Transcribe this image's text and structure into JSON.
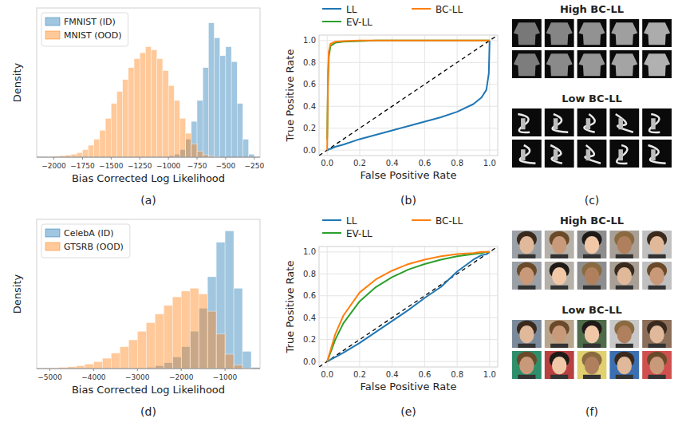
{
  "chart_data": [
    {
      "type": "histogram",
      "x_label": "Bias Corrected Log Likelihood",
      "y_label": "Density",
      "caption": "(a)",
      "bins": [
        -2100,
        -2050,
        -2000,
        -1950,
        -1900,
        -1850,
        -1800,
        -1750,
        -1700,
        -1650,
        -1600,
        -1550,
        -1500,
        -1450,
        -1400,
        -1350,
        -1300,
        -1250,
        -1200,
        -1150,
        -1100,
        -1050,
        -1000,
        -950,
        -900,
        -850,
        -800,
        -750,
        -700,
        -650,
        -600,
        -550,
        -500,
        -450,
        -400,
        -350,
        -300,
        -250
      ],
      "series": [
        {
          "name": "FMNIST (ID)",
          "color": "#1f77b4",
          "values": [
            0,
            0,
            0,
            0,
            0,
            0,
            0,
            0,
            0,
            0,
            0,
            0,
            0,
            0,
            0,
            0,
            0,
            0,
            0,
            0,
            0,
            0.02,
            0.05,
            0.1,
            0.25,
            0.6,
            1.2,
            1.9,
            3.0,
            4.5,
            4.0,
            3.4,
            3.7,
            3.2,
            1.8,
            0.6,
            0.1
          ]
        },
        {
          "name": "MNIST (OOD)",
          "color": "#ff7f0e",
          "values": [
            0,
            0.02,
            0.03,
            0.05,
            0.07,
            0.1,
            0.15,
            0.25,
            0.4,
            0.6,
            0.9,
            1.3,
            1.8,
            2.2,
            2.6,
            3.0,
            3.3,
            3.5,
            3.7,
            3.6,
            3.3,
            2.9,
            2.4,
            1.9,
            1.3,
            0.8,
            0.45,
            0.2,
            0.08,
            0.03,
            0.01,
            0,
            0,
            0,
            0,
            0,
            0
          ]
        }
      ],
      "xlim": [
        -2150,
        -200
      ],
      "ylim": [
        0,
        5
      ],
      "xticks": [
        {
          "value": -2000,
          "label": "−2000"
        },
        {
          "value": -1750,
          "label": "−1750"
        },
        {
          "value": -1500,
          "label": "−1500"
        },
        {
          "value": -1250,
          "label": "−1250"
        },
        {
          "value": -1000,
          "label": "−1000"
        },
        {
          "value": -750,
          "label": "−750"
        },
        {
          "value": -500,
          "label": "−500"
        },
        {
          "value": -250,
          "label": "−250"
        }
      ],
      "tick_labels": "x",
      "grid": false,
      "legend": "upper left"
    },
    {
      "type": "line",
      "x_label": "False Positive Rate",
      "y_label": "True Positive Rate",
      "caption": "(b)",
      "x": [
        0,
        0.005,
        0.01,
        0.02,
        0.05,
        0.1,
        0.2,
        0.3,
        0.4,
        0.5,
        0.6,
        0.7,
        0.8,
        0.9,
        0.95,
        0.98,
        0.995,
        1.0
      ],
      "series": [
        {
          "name": "LL",
          "color": "#1f77b4",
          "values": [
            0,
            0,
            0.01,
            0.01,
            0.03,
            0.05,
            0.1,
            0.14,
            0.18,
            0.22,
            0.26,
            0.3,
            0.35,
            0.42,
            0.48,
            0.55,
            0.7,
            1.0
          ]
        },
        {
          "name": "EV-LL",
          "color": "#2ca02c",
          "values": [
            0.1,
            0.6,
            0.85,
            0.95,
            0.98,
            0.99,
            0.995,
            1,
            1,
            1,
            1,
            1,
            1,
            1,
            1,
            1,
            1,
            1
          ]
        },
        {
          "name": "BC-LL",
          "color": "#ff7f0e",
          "values": [
            0,
            0.7,
            0.9,
            0.97,
            0.99,
            0.995,
            1,
            1,
            1,
            1,
            1,
            1,
            1,
            1,
            1,
            1,
            1,
            1
          ]
        }
      ],
      "xlim": [
        -0.05,
        1.05
      ],
      "ylim": [
        -0.05,
        1.05
      ],
      "xticks": [
        {
          "value": 0,
          "label": "0.0"
        },
        0.2,
        0.4,
        0.6,
        0.8,
        {
          "value": 1,
          "label": "1.0"
        }
      ],
      "yticks": [
        {
          "value": 0,
          "label": "0.0"
        },
        0.2,
        0.4,
        0.6,
        0.8,
        {
          "value": 1,
          "label": "1.0"
        }
      ],
      "grid": true,
      "legend": "top"
    },
    {
      "type": "image_grid",
      "caption": "(c)",
      "groups": [
        {
          "title": "High BC-LL"
        },
        {
          "title": "Low BC-LL"
        }
      ]
    },
    {
      "type": "histogram",
      "x_label": "Bias Corrected Log Likelihood",
      "y_label": "Density",
      "caption": "(d)",
      "bins": [
        -5200,
        -5000,
        -4800,
        -4600,
        -4400,
        -4200,
        -4000,
        -3800,
        -3600,
        -3400,
        -3200,
        -3000,
        -2800,
        -2600,
        -2400,
        -2200,
        -2000,
        -1800,
        -1600,
        -1400,
        -1200,
        -1000,
        -800,
        -600,
        -400,
        -200
      ],
      "series": [
        {
          "name": "CelebA (ID)",
          "color": "#1f77b4",
          "values": [
            0,
            0,
            0,
            0,
            0,
            0,
            0,
            0,
            0,
            0,
            0,
            0,
            0.02,
            0.05,
            0.1,
            0.2,
            0.38,
            0.65,
            1.05,
            1.6,
            2.2,
            2.4,
            1.4,
            0.3,
            0.02
          ]
        },
        {
          "name": "GTSRB (OOD)",
          "color": "#ff7f0e",
          "values": [
            0.01,
            0.01,
            0.02,
            0.03,
            0.05,
            0.08,
            0.12,
            0.18,
            0.27,
            0.38,
            0.5,
            0.65,
            0.8,
            0.95,
            1.1,
            1.25,
            1.35,
            1.4,
            1.3,
            1.0,
            0.6,
            0.25,
            0.06,
            0.01,
            0
          ]
        }
      ],
      "xlim": [
        -5300,
        -200
      ],
      "ylim": [
        0,
        2.6
      ],
      "xticks": [
        {
          "value": -5000,
          "label": "−5000"
        },
        {
          "value": -4000,
          "label": "−4000"
        },
        {
          "value": -3000,
          "label": "−3000"
        },
        {
          "value": -2000,
          "label": "−2000"
        },
        {
          "value": -1000,
          "label": "−1000"
        }
      ],
      "tick_labels": "x",
      "grid": false,
      "legend": "upper left"
    },
    {
      "type": "line",
      "x_label": "False Positive Rate",
      "y_label": "True Positive Rate",
      "caption": "(e)",
      "x": [
        0,
        0.005,
        0.01,
        0.02,
        0.05,
        0.1,
        0.2,
        0.3,
        0.4,
        0.5,
        0.6,
        0.7,
        0.8,
        0.9,
        0.95,
        0.98,
        0.995,
        1.0
      ],
      "series": [
        {
          "name": "LL",
          "color": "#1f77b4",
          "values": [
            0,
            0.004,
            0.008,
            0.016,
            0.04,
            0.08,
            0.17,
            0.27,
            0.37,
            0.47,
            0.58,
            0.68,
            0.82,
            0.93,
            0.97,
            0.98,
            0.995,
            1
          ]
        },
        {
          "name": "EV-LL",
          "color": "#2ca02c",
          "values": [
            0,
            0.02,
            0.04,
            0.08,
            0.2,
            0.35,
            0.55,
            0.68,
            0.77,
            0.84,
            0.89,
            0.93,
            0.96,
            0.98,
            0.99,
            1,
            1,
            1
          ]
        },
        {
          "name": "BC-LL",
          "color": "#ff7f0e",
          "values": [
            0,
            0.02,
            0.05,
            0.1,
            0.25,
            0.42,
            0.63,
            0.75,
            0.83,
            0.89,
            0.93,
            0.96,
            0.98,
            0.99,
            1,
            1,
            1,
            1
          ]
        }
      ],
      "xlim": [
        -0.05,
        1.05
      ],
      "ylim": [
        -0.05,
        1.05
      ],
      "xticks": [
        {
          "value": 0,
          "label": "0.0"
        },
        0.2,
        0.4,
        0.6,
        0.8,
        {
          "value": 1,
          "label": "1.0"
        }
      ],
      "yticks": [
        {
          "value": 0,
          "label": "0.0"
        },
        0.2,
        0.4,
        0.6,
        0.8,
        {
          "value": 1,
          "label": "1.0"
        }
      ],
      "grid": true,
      "legend": "top"
    },
    {
      "type": "image_grid",
      "caption": "(f)",
      "groups": [
        {
          "title": "High BC-LL"
        },
        {
          "title": "Low BC-LL"
        }
      ]
    }
  ]
}
